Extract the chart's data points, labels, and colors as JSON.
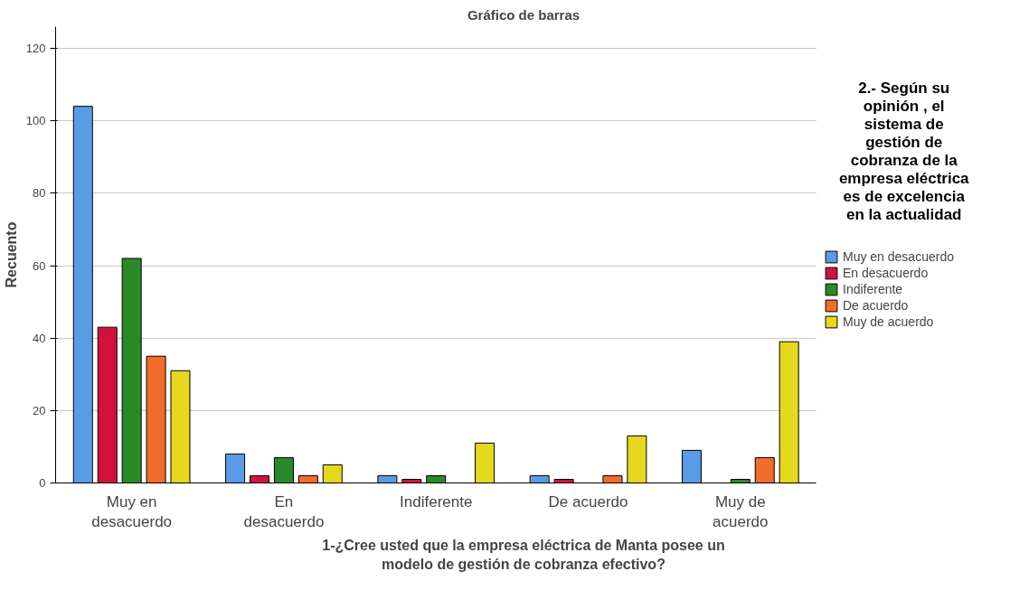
{
  "chart_data": {
    "type": "bar",
    "title": "Gráfico de barras",
    "xlabel": "1-¿Cree usted que la empresa eléctrica de Manta posee un modelo de gestión de cobranza efectivo?",
    "ylabel": "Recuento",
    "legend_title": "2.- Según su opinión , el sistema de gestión de cobranza de la empresa eléctrica es de excelencia en la actualidad",
    "categories": [
      "Muy en desacuerdo",
      "En desacuerdo",
      "Indiferente",
      "De acuerdo",
      "Muy de acuerdo"
    ],
    "series": [
      {
        "name": "Muy en desacuerdo",
        "color": "#5a9be6",
        "values": [
          104,
          8,
          2,
          2,
          9
        ]
      },
      {
        "name": "En desacuerdo",
        "color": "#d2113c",
        "values": [
          43,
          2,
          1,
          1,
          0
        ]
      },
      {
        "name": "Indiferente",
        "color": "#2a8a2a",
        "values": [
          62,
          7,
          2,
          0,
          1
        ]
      },
      {
        "name": "De acuerdo",
        "color": "#f26c2b",
        "values": [
          35,
          2,
          0,
          2,
          7
        ]
      },
      {
        "name": "Muy de acuerdo",
        "color": "#e6d81c",
        "values": [
          31,
          5,
          11,
          13,
          39
        ]
      }
    ],
    "ylim": [
      0,
      126
    ],
    "yticks": [
      0,
      20,
      40,
      60,
      80,
      100,
      120
    ],
    "grid": "y",
    "legend": "right"
  }
}
